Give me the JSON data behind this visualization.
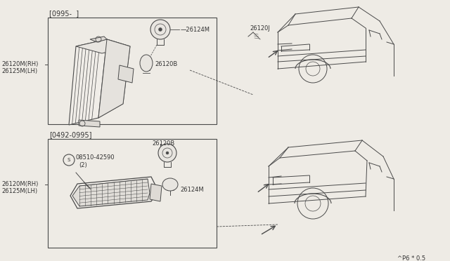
{
  "bg_color": "#eeebe5",
  "line_color": "#4a4a4a",
  "text_color": "#333333",
  "title_bottom": "^P6 * 0.5",
  "box1_label": "[0995-  ]",
  "box2_label": "[0492-0995]",
  "box1_parts": {
    "lamp_label": "26120B",
    "socket_label": "26124M",
    "side_label1": "26120M(RH)",
    "side_label2": "26125M(LH)",
    "car_label": "26120J"
  },
  "box2_parts": {
    "lamp_label": "26120B",
    "socket_label": "26124M",
    "bolt_label": "08510-42590",
    "bolt_label2": "(2)",
    "side_label1": "26120M(RH)",
    "side_label2": "26125M(LH)"
  },
  "font_size_small": 6.0,
  "font_size_medium": 7.0
}
